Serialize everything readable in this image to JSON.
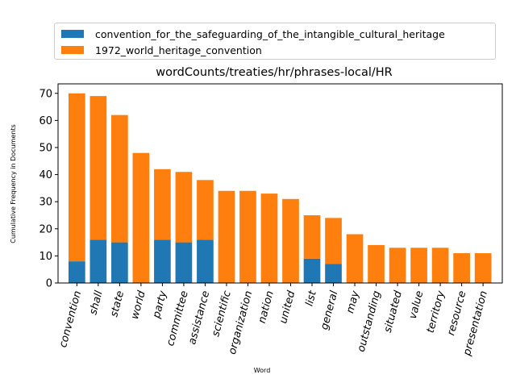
{
  "chart_data": {
    "type": "bar",
    "title": "wordCounts/treaties/hr/phrases-local/HR",
    "xlabel": "Word",
    "ylabel": "Cumulative Frequency in Documents",
    "ylim": [
      0,
      73.5
    ],
    "yticks": [
      0,
      10,
      20,
      30,
      40,
      50,
      60,
      70
    ],
    "stacked": true,
    "legend_position": "top",
    "categories": [
      "convention",
      "shall",
      "state",
      "world",
      "party",
      "committee",
      "assistance",
      "scientific",
      "organization",
      "nation",
      "united",
      "list",
      "general",
      "may",
      "outstanding",
      "situated",
      "value",
      "territory",
      "resource",
      "presentation"
    ],
    "series": [
      {
        "name": "convention_for_the_safeguarding_of_the_intangible_cultural_heritage",
        "color": "#1f77b4",
        "values": [
          8,
          16,
          15,
          0,
          16,
          15,
          16,
          0,
          0,
          0,
          0,
          9,
          7,
          0,
          0,
          0,
          0,
          0,
          0,
          0
        ]
      },
      {
        "name": "1972_world_heritage_convention",
        "color": "#ff7f0e",
        "values": [
          62,
          53,
          47,
          48,
          26,
          26,
          22,
          34,
          34,
          33,
          31,
          16,
          17,
          18,
          14,
          13,
          13,
          13,
          11,
          11
        ]
      }
    ]
  }
}
